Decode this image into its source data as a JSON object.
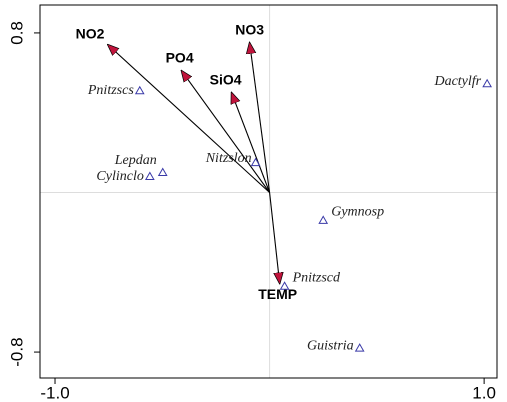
{
  "chart_data": {
    "type": "biplot",
    "xlim": [
      -1.07,
      1.06
    ],
    "ylim": [
      -0.93,
      0.94
    ],
    "xticks": [
      {
        "value": -1.0,
        "label": "-1.0"
      },
      {
        "value": 1.0,
        "label": "1.0"
      }
    ],
    "yticks": [
      -0.8,
      0.8
    ],
    "arrow_color": "#c0143c",
    "point_color": "#3a3aa8",
    "arrows": [
      {
        "label": "NO2",
        "x": -0.753,
        "y": 0.74
      },
      {
        "label": "PO4",
        "x": -0.41,
        "y": 0.61
      },
      {
        "label": "SiO4",
        "x": -0.177,
        "y": 0.5
      },
      {
        "label": "NO3",
        "x": -0.093,
        "y": 0.75
      },
      {
        "label": "TEMP",
        "x": 0.047,
        "y": -0.455
      }
    ],
    "points": [
      {
        "label": "Pnitzscs",
        "x": -0.605,
        "y": 0.51
      },
      {
        "label": "Dactylfr",
        "x": 1.014,
        "y": 0.545
      },
      {
        "label": "Lepdan",
        "x": -0.498,
        "y": 0.1
      },
      {
        "label": "Cylinclo",
        "x": -0.558,
        "y": 0.08
      },
      {
        "label": "Nitzslon",
        "x": -0.065,
        "y": 0.15
      },
      {
        "label": "Gymnosp",
        "x": 0.25,
        "y": -0.14
      },
      {
        "label": "Pnitzscd",
        "x": 0.07,
        "y": -0.47
      },
      {
        "label": "Guistria",
        "x": 0.42,
        "y": -0.78
      }
    ]
  }
}
